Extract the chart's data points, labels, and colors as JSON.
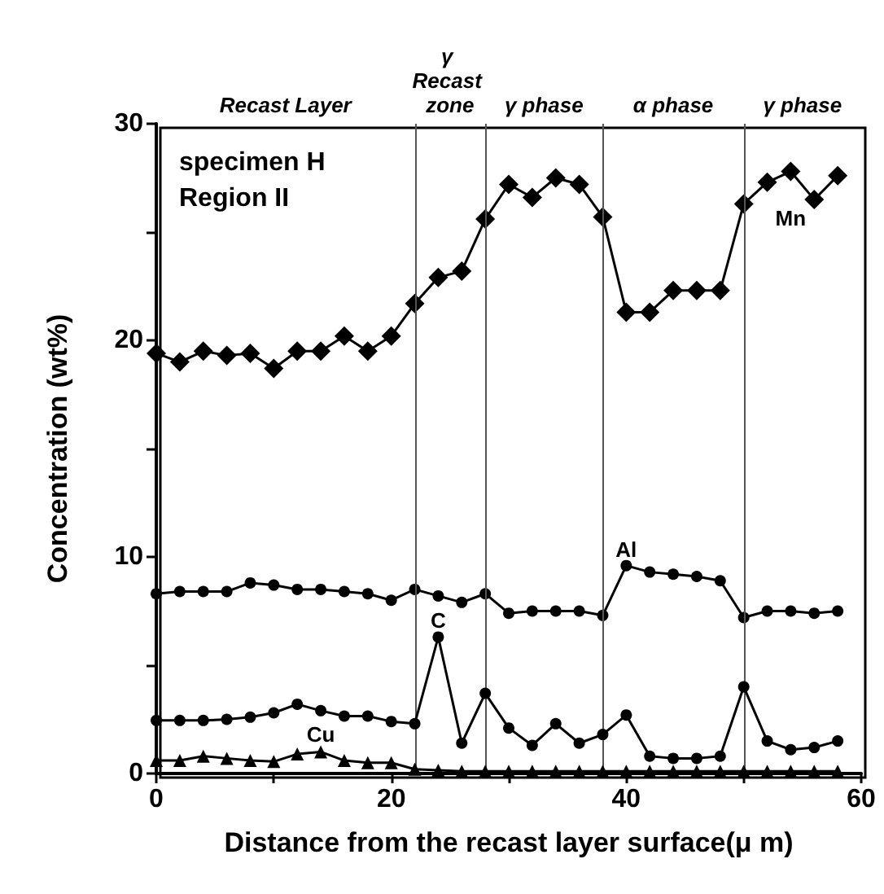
{
  "chart_data": {
    "type": "line",
    "xlabel": "Distance from the recast layer surface(μ m)",
    "ylabel": "Concentration (wt%)",
    "x": [
      0,
      2,
      4,
      6,
      8,
      10,
      12,
      14,
      16,
      18,
      20,
      22,
      24,
      26,
      28,
      30,
      32,
      34,
      36,
      38,
      40,
      42,
      44,
      46,
      48,
      50,
      52,
      54,
      56,
      58
    ],
    "series": [
      {
        "name": "Mn",
        "color": "#000000",
        "marker": "diamond",
        "values": [
          19.4,
          19.0,
          19.5,
          19.3,
          19.4,
          18.7,
          19.5,
          19.5,
          20.2,
          19.5,
          20.2,
          21.7,
          22.9,
          23.2,
          25.6,
          27.2,
          26.6,
          27.5,
          27.2,
          25.7,
          21.3,
          21.3,
          22.3,
          22.3,
          22.3,
          26.3,
          27.3,
          27.8,
          26.5,
          27.6
        ]
      },
      {
        "name": "Al",
        "color": "#000000",
        "marker": "circle",
        "values": [
          8.3,
          8.4,
          8.4,
          8.4,
          8.8,
          8.7,
          8.5,
          8.5,
          8.4,
          8.3,
          8.0,
          8.5,
          8.2,
          7.9,
          8.3,
          7.4,
          7.5,
          7.5,
          7.5,
          7.3,
          9.6,
          9.3,
          9.2,
          9.1,
          8.9,
          7.2,
          7.5,
          7.5,
          7.4,
          7.5
        ]
      },
      {
        "name": "C",
        "color": "#000000",
        "marker": "circle",
        "values": [
          2.45,
          2.45,
          2.45,
          2.5,
          2.6,
          2.8,
          3.2,
          2.9,
          2.65,
          2.65,
          2.4,
          2.3,
          6.3,
          1.4,
          3.7,
          2.1,
          1.3,
          2.3,
          1.4,
          1.8,
          2.7,
          0.8,
          0.7,
          0.7,
          0.8,
          4.0,
          1.5,
          1.1,
          1.2,
          1.5
        ]
      },
      {
        "name": "Cu",
        "color": "#000000",
        "marker": "triangle",
        "values": [
          0.6,
          0.6,
          0.8,
          0.7,
          0.6,
          0.55,
          0.9,
          1.0,
          0.6,
          0.5,
          0.5,
          0.2,
          0.15,
          0.1,
          0.1,
          0.1,
          0.1,
          0.1,
          0.1,
          0.1,
          0.1,
          0.1,
          0.1,
          0.1,
          0.1,
          0.1,
          0.1,
          0.1,
          0.1,
          0.1
        ]
      }
    ],
    "xlim": [
      0,
      60
    ],
    "xticks": [
      0,
      {
        "value": 10,
        "label": null
      },
      20,
      {
        "value": 30,
        "label": null
      },
      40,
      {
        "value": 50,
        "label": null
      },
      60
    ],
    "ylim": [
      0,
      30
    ],
    "yticks": [
      0,
      {
        "value": 5,
        "label": null
      },
      10,
      {
        "value": 15,
        "label": null
      },
      20,
      {
        "value": 25,
        "label": null
      },
      30
    ],
    "ref_lines": [
      {
        "axis": "x",
        "value": 22
      },
      {
        "axis": "x",
        "value": 28
      },
      {
        "axis": "x",
        "value": 38
      },
      {
        "axis": "x",
        "value": 50
      }
    ],
    "annotations": [
      "specimen H",
      "Region II",
      "Recast Layer",
      "γ Recast zone",
      "γ phase",
      "α phase",
      "γ phase"
    ],
    "grid": false,
    "legend": false,
    "line_style": "solid"
  }
}
